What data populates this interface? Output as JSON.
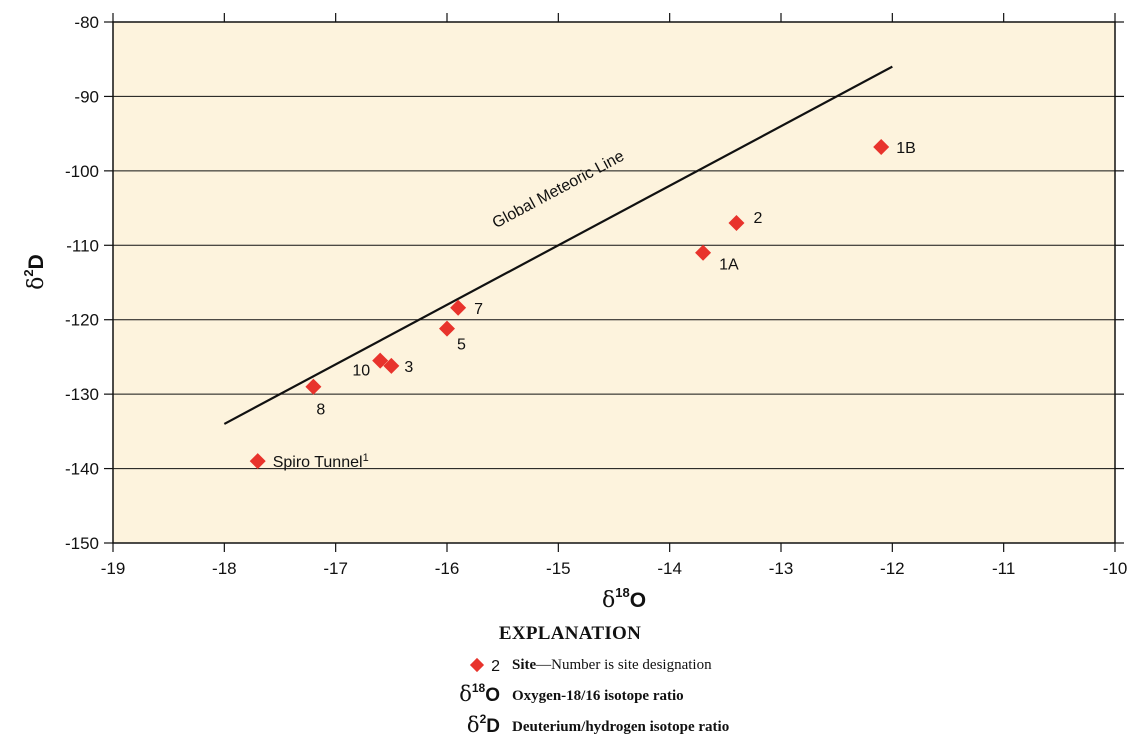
{
  "chart_data": {
    "type": "scatter",
    "xlim": [
      -19,
      -10
    ],
    "ylim": [
      -150,
      -80
    ],
    "x_ticks": [
      "-19",
      "-18",
      "-17",
      "-16",
      "-15",
      "-14",
      "-13",
      "-12",
      "-11",
      "-10"
    ],
    "y_ticks": [
      "-80",
      "-90",
      "-100",
      "-110",
      "-120",
      "-130",
      "-140",
      "-150"
    ],
    "grid": "horizontal",
    "xlabel": {
      "symbol": "δ",
      "superscript": "18",
      "element": "O"
    },
    "ylabel": {
      "symbol": "δ",
      "superscript": "2",
      "element": "D"
    },
    "colors": {
      "plot_background": "#fdf3dd",
      "marker": "#e8332c",
      "line": "#111111"
    },
    "series": [
      {
        "marker": "diamond",
        "points": [
          {
            "x": -12.1,
            "y": -96.8,
            "label": "1B"
          },
          {
            "x": -13.4,
            "y": -107.0,
            "label": "2"
          },
          {
            "x": -13.7,
            "y": -111.0,
            "label": "1A"
          },
          {
            "x": -15.9,
            "y": -118.4,
            "label": "7"
          },
          {
            "x": -16.0,
            "y": -121.2,
            "label": "5"
          },
          {
            "x": -16.5,
            "y": -126.2,
            "label": "3"
          },
          {
            "x": -16.6,
            "y": -125.5,
            "label": "10"
          },
          {
            "x": -17.2,
            "y": -129.0,
            "label": "8"
          },
          {
            "x": -17.7,
            "y": -139.0,
            "label": "Spiro Tunnel",
            "label_superscript": "1"
          }
        ]
      }
    ],
    "line": {
      "name": "Global Meteoric Line",
      "points": [
        {
          "x": -18.0,
          "y": -134.0
        },
        {
          "x": -12.0,
          "y": -86.0
        }
      ]
    }
  },
  "explanation": {
    "title": "EXPLANATION",
    "items": [
      {
        "key": "2",
        "term": "Site",
        "text": "—Number is site designation"
      },
      {
        "key_symbol": "δ",
        "key_superscript": "18",
        "key_element": "O",
        "text": "Oxygen-18/16 isotope ratio"
      },
      {
        "key_symbol": "δ",
        "key_superscript": "2",
        "key_element": "D",
        "text": "Deuterium/hydrogen isotope ratio"
      }
    ]
  }
}
